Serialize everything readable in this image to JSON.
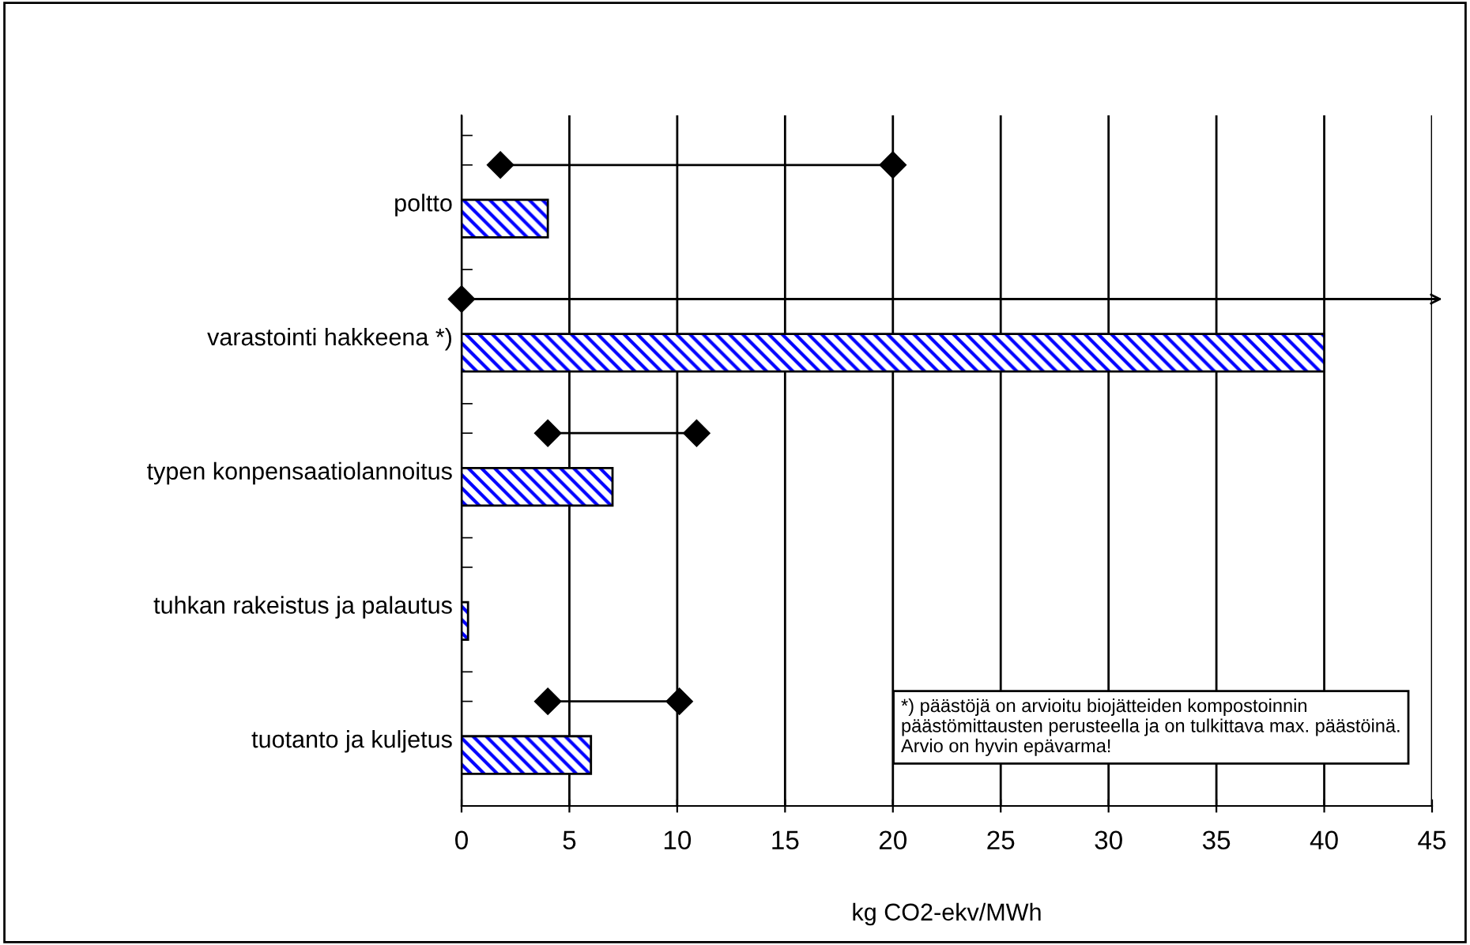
{
  "chart_data": {
    "type": "bar",
    "orientation": "horizontal",
    "categories": [
      "poltto",
      "varastointi hakkeena *)",
      "typen konpensaatiolannoitus",
      "tuhkan rakeistus ja palautus",
      "tuotanto ja kuljetus"
    ],
    "series": [
      {
        "color": "#0000ff",
        "values": [
          4,
          40,
          7,
          0.3,
          6
        ]
      },
      {
        "type": "scatter",
        "color": "#000000",
        "marker": "diamond",
        "values": [
          1.8,
          0,
          4,
          null,
          4
        ]
      },
      {
        "type": "scatter",
        "color": "#000000",
        "marker": "diamond",
        "values": [
          20,
          null,
          10.9,
          null,
          10.1
        ]
      }
    ],
    "xlabel": "kg CO2-ekv/MWh",
    "xlim": [
      0,
      45
    ],
    "xticks": [
      0,
      5,
      10,
      15,
      20,
      25,
      30,
      35,
      40,
      45
    ],
    "grid": "x",
    "annotations": [
      "*) päästöjä on arvioitu biojätteiden kompostoinnin päästömittausten perusteella ja on tulkittava max. päästöinä. Arvio on hyvin epävarma!"
    ]
  }
}
